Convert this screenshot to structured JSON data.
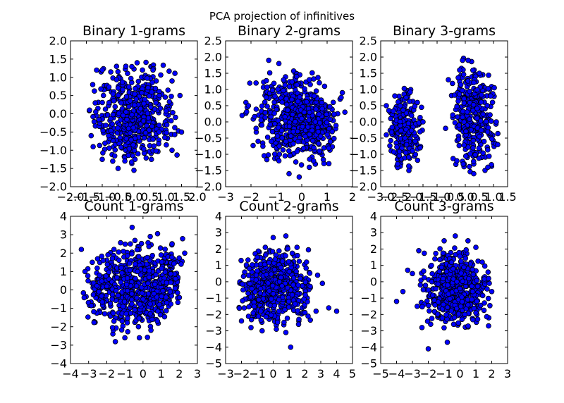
{
  "figure": {
    "suptitle": "PCA projection of infinitives"
  },
  "chart_data": [
    {
      "type": "scatter",
      "title": "Binary 1-grams",
      "xlim": [
        -2.0,
        2.0
      ],
      "ylim": [
        -2.0,
        2.0
      ],
      "xticks": [
        -2.0,
        -1.5,
        -1.0,
        -0.5,
        0.0,
        0.5,
        1.0,
        1.5,
        2.0
      ],
      "yticks": [
        -2.0,
        -1.5,
        -1.0,
        -0.5,
        0.0,
        0.5,
        1.0,
        1.5,
        2.0
      ],
      "xtick_labels": [
        "−2.0",
        "−1.5",
        "−1.0",
        "−0.5",
        "0.0",
        "0.5",
        "1.0",
        "1.5",
        "2.0"
      ],
      "ytick_labels": [
        "−2.0",
        "−1.5",
        "−1.0",
        "−0.5",
        "0.0",
        "0.5",
        "1.0",
        "1.5",
        "2.0"
      ],
      "marker_color": "#0000ff",
      "points": [
        [
          -0.55,
          1.3
        ],
        [
          0.1,
          1.4
        ],
        [
          0.6,
          1.2
        ],
        [
          1.2,
          0.9
        ],
        [
          1.45,
          0.5
        ],
        [
          1.5,
          -0.5
        ],
        [
          1.2,
          -1.0
        ],
        [
          0.55,
          -1.25
        ],
        [
          0.0,
          -1.55
        ],
        [
          -0.5,
          -1.5
        ],
        [
          -1.0,
          -1.25
        ],
        [
          -1.35,
          -0.6
        ],
        [
          -1.4,
          0.1
        ],
        [
          -1.3,
          0.8
        ],
        [
          -1.0,
          1.2
        ],
        [
          -0.4,
          0.3
        ],
        [
          0.3,
          -0.2
        ],
        [
          0.8,
          0.5
        ],
        [
          -0.8,
          -0.6
        ],
        [
          0.6,
          -0.7
        ]
      ]
    },
    {
      "type": "scatter",
      "title": "Binary 2-grams",
      "xlim": [
        -3,
        2
      ],
      "ylim": [
        -2.0,
        2.5
      ],
      "xticks": [
        -3,
        -2,
        -1,
        0,
        1,
        2
      ],
      "yticks": [
        -2.0,
        -1.5,
        -1.0,
        -0.5,
        0.0,
        0.5,
        1.0,
        1.5,
        2.0,
        2.5
      ],
      "xtick_labels": [
        "−3",
        "−2",
        "−1",
        "0",
        "1",
        "2"
      ],
      "ytick_labels": [
        "−2.0",
        "−1.5",
        "−1.0",
        "−0.5",
        "0.0",
        "0.5",
        "1.0",
        "1.5",
        "2.0",
        "2.5"
      ],
      "marker_color": "#0000ff",
      "points": [
        [
          -2.35,
          0.2
        ],
        [
          -2.2,
          0.6
        ],
        [
          -1.8,
          1.2
        ],
        [
          -1.3,
          1.9
        ],
        [
          -0.9,
          1.8
        ],
        [
          -0.2,
          1.4
        ],
        [
          0.3,
          1.3
        ],
        [
          0.9,
          1.1
        ],
        [
          1.6,
          0.9
        ],
        [
          1.7,
          0.3
        ],
        [
          1.2,
          -0.3
        ],
        [
          0.7,
          -0.9
        ],
        [
          0.3,
          -1.4
        ],
        [
          -0.1,
          -1.7
        ],
        [
          -0.5,
          -1.6
        ],
        [
          -0.9,
          -1.2
        ],
        [
          -1.2,
          -0.6
        ],
        [
          -1.8,
          -0.2
        ],
        [
          -2.1,
          0.5
        ],
        [
          0.0,
          0.1
        ]
      ]
    },
    {
      "type": "scatter",
      "title": "Binary 3-grams",
      "xlim": [
        -3.0,
        1.5
      ],
      "ylim": [
        -2.0,
        2.5
      ],
      "xticks": [
        -3.0,
        -2.5,
        -2.0,
        -1.5,
        -1.0,
        -0.5,
        0.0,
        0.5,
        1.0,
        1.5
      ],
      "yticks": [
        -2.0,
        -1.5,
        -1.0,
        -0.5,
        0.0,
        0.5,
        1.0,
        1.5,
        2.0,
        2.5
      ],
      "xtick_labels": [
        "−3.0",
        "−2.5",
        "−2.0",
        "−1.5",
        "−1.0",
        "−0.5",
        "0.0",
        "0.5",
        "1.0",
        "1.5"
      ],
      "ytick_labels": [
        "−2.0",
        "−1.5",
        "−1.0",
        "−0.5",
        "0.0",
        "0.5",
        "1.0",
        "1.5",
        "2.0",
        "2.5"
      ],
      "marker_color": "#0000ff",
      "points": [
        [
          -2.8,
          0.5
        ],
        [
          -2.5,
          0.8
        ],
        [
          -2.1,
          0.75
        ],
        [
          -1.7,
          0.6
        ],
        [
          -1.5,
          0.0
        ],
        [
          -1.6,
          -0.8
        ],
        [
          -2.0,
          -1.5
        ],
        [
          -2.4,
          -1.3
        ],
        [
          -2.8,
          -0.4
        ],
        [
          -0.6,
          1.3
        ],
        [
          -0.2,
          1.6
        ],
        [
          0.1,
          1.9
        ],
        [
          0.5,
          1.5
        ],
        [
          0.9,
          0.8
        ],
        [
          1.1,
          0.0
        ],
        [
          1.15,
          -0.7
        ],
        [
          0.8,
          -1.4
        ],
        [
          0.3,
          -1.6
        ],
        [
          -0.3,
          -1.2
        ],
        [
          -0.7,
          -0.2
        ]
      ]
    },
    {
      "type": "scatter",
      "title": "Count 1-grams",
      "xlim": [
        -4,
        3
      ],
      "ylim": [
        -4,
        4
      ],
      "xticks": [
        -4,
        -3,
        -2,
        -1,
        0,
        1,
        2,
        3
      ],
      "yticks": [
        -4,
        -3,
        -2,
        -1,
        0,
        1,
        2,
        3,
        4
      ],
      "xtick_labels": [
        "−4",
        "−3",
        "−2",
        "−1",
        "0",
        "1",
        "2",
        "3"
      ],
      "ytick_labels": [
        "−4",
        "−3",
        "−2",
        "−1",
        "0",
        "1",
        "2",
        "3",
        "4"
      ],
      "marker_color": "#0000ff",
      "points": [
        [
          -3.4,
          2.2
        ],
        [
          -3.2,
          1.0
        ],
        [
          -2.8,
          1.5
        ],
        [
          -2.4,
          0.8
        ],
        [
          -2.0,
          0.2
        ],
        [
          -1.7,
          -0.5
        ],
        [
          -1.6,
          -1.7
        ],
        [
          -2.2,
          1.6
        ],
        [
          -1.6,
          2.2
        ],
        [
          -1.2,
          1.2
        ],
        [
          -0.9,
          0.3
        ],
        [
          -1.1,
          -0.9
        ],
        [
          -1.0,
          -2.6
        ],
        [
          -0.6,
          3.4
        ],
        [
          -0.7,
          2.5
        ],
        [
          -0.3,
          1.0
        ],
        [
          0.0,
          -0.5
        ],
        [
          -0.2,
          -2.6
        ],
        [
          0.4,
          2.9
        ],
        [
          0.2,
          1.4
        ],
        [
          0.6,
          -0.2
        ],
        [
          0.4,
          -1.3
        ],
        [
          1.6,
          2.5
        ],
        [
          1.0,
          1.9
        ],
        [
          1.3,
          0.4
        ],
        [
          0.9,
          -0.8
        ],
        [
          2.3,
          2.0
        ],
        [
          2.1,
          1.4
        ],
        [
          1.8,
          0.6
        ],
        [
          1.5,
          -0.1
        ]
      ]
    },
    {
      "type": "scatter",
      "title": "Count 2-grams",
      "xlim": [
        -3,
        5
      ],
      "ylim": [
        -5,
        4
      ],
      "xticks": [
        -3,
        -2,
        -1,
        0,
        1,
        2,
        3,
        4,
        5
      ],
      "yticks": [
        -5,
        -4,
        -3,
        -2,
        -1,
        0,
        1,
        2,
        3,
        4
      ],
      "xtick_labels": [
        "−3",
        "−2",
        "−1",
        "0",
        "1",
        "2",
        "3",
        "4",
        "5"
      ],
      "ytick_labels": [
        "−5",
        "−4",
        "−3",
        "−2",
        "−1",
        "0",
        "1",
        "2",
        "3",
        "4"
      ],
      "marker_color": "#0000ff",
      "points": [
        [
          -2.0,
          -2.4
        ],
        [
          -1.9,
          -0.5
        ],
        [
          -1.5,
          0.8
        ],
        [
          -1.0,
          1.5
        ],
        [
          -0.5,
          2.1
        ],
        [
          0.0,
          2.7
        ],
        [
          0.8,
          2.8
        ],
        [
          1.5,
          2.1
        ],
        [
          2.1,
          1.2
        ],
        [
          2.8,
          0.4
        ],
        [
          3.1,
          -0.1
        ],
        [
          4.0,
          -1.8
        ],
        [
          3.5,
          -1.6
        ],
        [
          2.7,
          -1.8
        ],
        [
          2.2,
          -2.1
        ],
        [
          1.6,
          -2.6
        ],
        [
          1.1,
          -4.0
        ],
        [
          0.8,
          -3.1
        ],
        [
          0.2,
          -2.9
        ],
        [
          -0.7,
          -3.0
        ],
        [
          -1.4,
          -2.8
        ],
        [
          -1.2,
          -1.5
        ],
        [
          0.4,
          0.0
        ],
        [
          1.2,
          -0.8
        ]
      ]
    },
    {
      "type": "scatter",
      "title": "Count 3-grams",
      "xlim": [
        -5,
        3
      ],
      "ylim": [
        -5,
        4
      ],
      "xticks": [
        -5,
        -4,
        -3,
        -2,
        -1,
        0,
        1,
        2,
        3
      ],
      "yticks": [
        -5,
        -4,
        -3,
        -2,
        -1,
        0,
        1,
        2,
        3,
        4
      ],
      "xtick_labels": [
        "−5",
        "−4",
        "−3",
        "−2",
        "−1",
        "0",
        "1",
        "2",
        "3"
      ],
      "ytick_labels": [
        "−5",
        "−4",
        "−3",
        "−2",
        "−1",
        "0",
        "1",
        "2",
        "3",
        "4"
      ],
      "marker_color": "#0000ff",
      "points": [
        [
          -4.0,
          -1.2
        ],
        [
          -3.6,
          -0.6
        ],
        [
          -3.3,
          0.7
        ],
        [
          -3.0,
          0.5
        ],
        [
          -2.5,
          -0.2
        ],
        [
          -2.6,
          1.9
        ],
        [
          -1.8,
          1.0
        ],
        [
          -1.0,
          2.5
        ],
        [
          -0.3,
          2.8
        ],
        [
          0.5,
          2.5
        ],
        [
          1.0,
          2.1
        ],
        [
          1.4,
          1.2
        ],
        [
          1.8,
          0.2
        ],
        [
          2.0,
          -0.6
        ],
        [
          1.8,
          -2.7
        ],
        [
          1.0,
          -1.9
        ],
        [
          0.3,
          -2.0
        ],
        [
          -0.4,
          -2.6
        ],
        [
          -0.8,
          -3.7
        ],
        [
          -2.0,
          -4.1
        ],
        [
          -2.4,
          -2.8
        ],
        [
          -2.7,
          -1.5
        ],
        [
          -0.2,
          0.0
        ],
        [
          0.8,
          -0.6
        ]
      ]
    }
  ]
}
